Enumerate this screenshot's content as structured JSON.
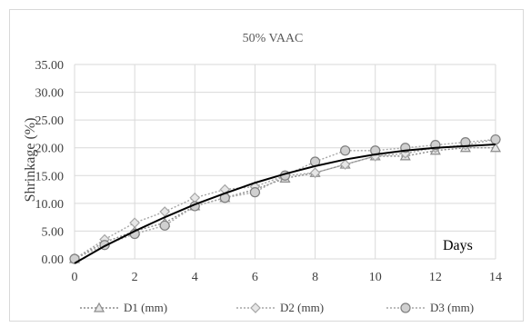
{
  "chart_data": {
    "type": "line",
    "title": "50% VAAC",
    "xlabel": "",
    "ylabel": "Shrinkage (%)",
    "annotation": "Days",
    "xlim": [
      0,
      14
    ],
    "ylim": [
      0,
      35
    ],
    "x_ticks": [
      0,
      2,
      4,
      6,
      8,
      10,
      12,
      14
    ],
    "y_ticks": [
      "0.00",
      "5.00",
      "10.00",
      "15.00",
      "20.00",
      "25.00",
      "30.00",
      "35.00"
    ],
    "grid": true,
    "legend_position": "bottom",
    "x": [
      0,
      1,
      2,
      3,
      4,
      5,
      6,
      7,
      8,
      9,
      10,
      11,
      12,
      13,
      14
    ],
    "series": [
      {
        "name": "D1 (mm)",
        "marker": "triangle",
        "color": "#8c8c8c",
        "values": [
          0,
          3.0,
          5.0,
          6.5,
          9.5,
          11.0,
          12.5,
          14.5,
          15.5,
          17.0,
          18.5,
          18.5,
          19.5,
          20.0,
          20.0
        ]
      },
      {
        "name": "D2 (mm)",
        "marker": "diamond",
        "color": "#a6a6a6",
        "values": [
          0,
          3.5,
          6.5,
          8.5,
          11.0,
          12.5,
          13.0,
          15.0,
          15.5,
          17.0,
          18.5,
          19.0,
          20.0,
          20.5,
          21.5
        ]
      },
      {
        "name": "D3 (mm)",
        "marker": "circle",
        "color": "#a6a6a6",
        "values": [
          0,
          2.5,
          4.5,
          6.0,
          9.5,
          11.0,
          12.0,
          15.0,
          17.5,
          19.5,
          19.5,
          20.0,
          20.5,
          21.0,
          21.5
        ]
      }
    ],
    "trendline": {
      "color": "#000000",
      "x": [
        0,
        1,
        2,
        3,
        4,
        5,
        6,
        7,
        8,
        9,
        10,
        11,
        12,
        13,
        14
      ],
      "values": [
        -0.8,
        2.3,
        5.0,
        7.5,
        9.8,
        11.8,
        13.7,
        15.3,
        16.7,
        17.9,
        18.8,
        19.5,
        20.0,
        20.3,
        20.6
      ]
    }
  }
}
